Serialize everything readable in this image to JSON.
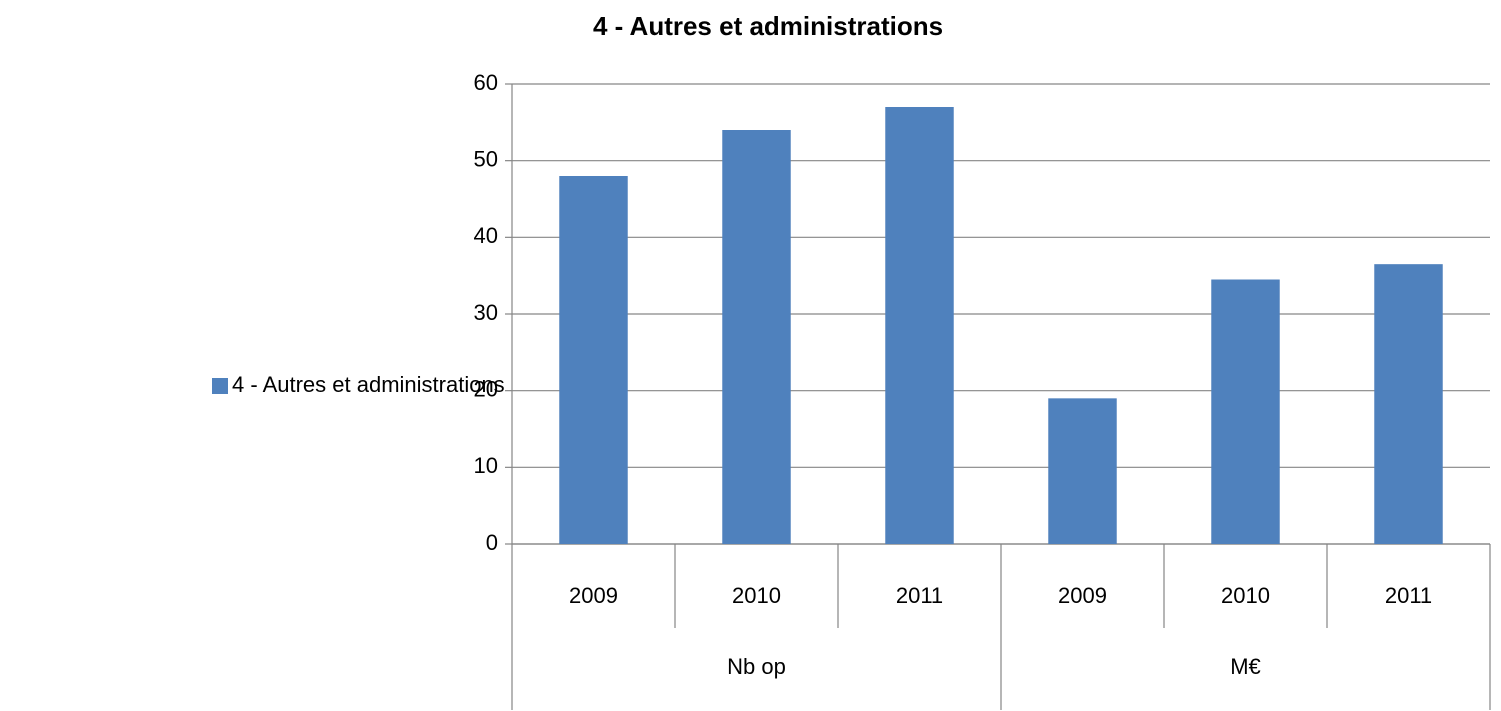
{
  "chart_data": {
    "type": "bar",
    "title": "4 - Autres et administrations",
    "categories": [
      "2009",
      "2010",
      "2011",
      "2009",
      "2010",
      "2011"
    ],
    "groups": [
      "Nb op",
      "M€"
    ],
    "series": [
      {
        "name": "4 - Autres et administrations",
        "color": "#4f81bd",
        "values": [
          48,
          54,
          57,
          19,
          34.5,
          36.5
        ]
      }
    ],
    "ylim": [
      0,
      60
    ],
    "yticks": [
      0,
      10,
      20,
      30,
      40,
      50,
      60
    ],
    "grid": true,
    "legend": "left"
  }
}
